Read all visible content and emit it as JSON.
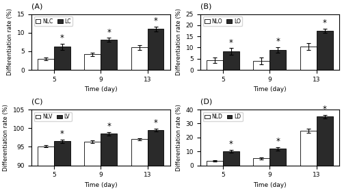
{
  "chart_data": [
    {
      "type": "bar",
      "title": "(A)",
      "x_label": "Time (day)",
      "y_label": "Differentiation rate (%)",
      "categories": [
        "5",
        "9",
        "13"
      ],
      "series": [
        {
          "name": "NLC",
          "color": "#ffffff",
          "values": [
            3.0,
            4.2,
            6.0
          ],
          "errors": [
            0.4,
            0.5,
            0.6
          ]
        },
        {
          "name": "LC",
          "color": "#2a2a2a",
          "values": [
            6.2,
            8.1,
            11.0
          ],
          "errors": [
            0.8,
            0.5,
            0.6
          ]
        }
      ],
      "annotations": [
        {
          "text": "*",
          "category": "5",
          "series": "LC"
        },
        {
          "text": "*",
          "category": "9",
          "series": "LC"
        },
        {
          "text": "*",
          "category": "13",
          "series": "LC"
        }
      ],
      "ylim": [
        0,
        15
      ],
      "yticks": [
        0,
        5,
        10,
        15
      ],
      "legend": "upper left",
      "grid": false
    },
    {
      "type": "bar",
      "title": "(B)",
      "x_label": "Time (day)",
      "y_label": "Differentiation rate (%)",
      "categories": [
        "5",
        "9",
        "13"
      ],
      "series": [
        {
          "name": "NLO",
          "color": "#ffffff",
          "values": [
            4.2,
            4.0,
            10.5
          ],
          "errors": [
            1.2,
            1.5,
            1.5
          ]
        },
        {
          "name": "LO",
          "color": "#2a2a2a",
          "values": [
            8.2,
            9.0,
            17.5
          ],
          "errors": [
            1.5,
            1.2,
            1.0
          ]
        }
      ],
      "annotations": [
        {
          "text": "*",
          "category": "5",
          "series": "LO"
        },
        {
          "text": "*",
          "category": "9",
          "series": "LO"
        },
        {
          "text": "*",
          "category": "13",
          "series": "LO"
        }
      ],
      "ylim": [
        0,
        25
      ],
      "yticks": [
        0,
        5,
        10,
        15,
        20,
        25
      ],
      "legend": "upper left",
      "grid": false
    },
    {
      "type": "bar",
      "title": "(C)",
      "x_label": "Time (day)",
      "y_label": "Differentiation rate (%)",
      "categories": [
        "5",
        "9",
        "13"
      ],
      "series": [
        {
          "name": "NLV",
          "color": "#ffffff",
          "values": [
            95.1,
            96.3,
            97.0
          ],
          "errors": [
            0.3,
            0.35,
            0.35
          ]
        },
        {
          "name": "LV",
          "color": "#2a2a2a",
          "values": [
            96.5,
            98.5,
            99.5
          ],
          "errors": [
            0.45,
            0.5,
            0.4
          ]
        }
      ],
      "annotations": [
        {
          "text": "*",
          "category": "5",
          "series": "LV"
        },
        {
          "text": "*",
          "category": "9",
          "series": "LV"
        },
        {
          "text": "*",
          "category": "13",
          "series": "LV"
        }
      ],
      "ylim": [
        90,
        105
      ],
      "yticks": [
        90,
        95,
        100,
        105
      ],
      "legend": "upper left",
      "grid": false
    },
    {
      "type": "bar",
      "title": "(D)",
      "x_label": "Time (day)",
      "y_label": "Differentiation rate (%)",
      "categories": [
        "5",
        "9",
        "13"
      ],
      "series": [
        {
          "name": "NLD",
          "color": "#ffffff",
          "values": [
            3.0,
            5.0,
            25.0
          ],
          "errors": [
            0.5,
            0.7,
            1.5
          ]
        },
        {
          "name": "LD",
          "color": "#2a2a2a",
          "values": [
            10.0,
            12.0,
            35.0
          ],
          "errors": [
            1.0,
            1.2,
            1.2
          ]
        }
      ],
      "annotations": [
        {
          "text": "*",
          "category": "5",
          "series": "LD"
        },
        {
          "text": "*",
          "category": "9",
          "series": "LD"
        },
        {
          "text": "*",
          "category": "13",
          "series": "LD"
        }
      ],
      "ylim": [
        0,
        40
      ],
      "yticks": [
        0,
        10,
        20,
        30,
        40
      ],
      "legend": "upper left",
      "grid": false
    }
  ]
}
